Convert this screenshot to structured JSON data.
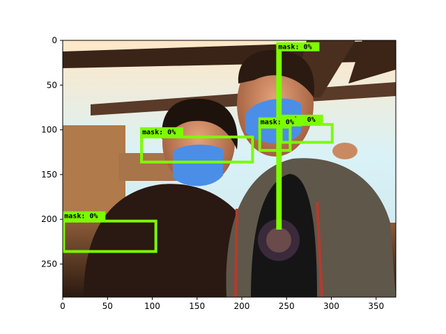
{
  "axes": {
    "x_range": [
      0,
      372
    ],
    "y_range": [
      0,
      287
    ],
    "y_inverted": true,
    "x_ticks": [
      0,
      50,
      100,
      150,
      200,
      250,
      300,
      350
    ],
    "y_ticks": [
      0,
      50,
      100,
      150,
      200,
      250
    ],
    "x_tick_labels": [
      "0",
      "50",
      "100",
      "150",
      "200",
      "250",
      "300",
      "350"
    ],
    "y_tick_labels": [
      "0",
      "50",
      "100",
      "150",
      "200",
      "250"
    ]
  },
  "detections": [
    {
      "label": "mask:  0%",
      "x0": 240,
      "y0": 13,
      "x1": 243,
      "y1": 210
    },
    {
      "label": "mask:  0%",
      "x0": 244,
      "y0": 94,
      "x1": 301,
      "y1": 114
    },
    {
      "label": "mask:  0%",
      "x0": 88,
      "y0": 108,
      "x1": 212,
      "y1": 136
    },
    {
      "label": "mask:  0%",
      "x0": 220,
      "y0": 97,
      "x1": 254,
      "y1": 123
    },
    {
      "label": "mask:  0%",
      "x0": 1,
      "y0": 202,
      "x1": 104,
      "y1": 236
    }
  ],
  "colors": {
    "box": "#7cfc00",
    "mask": "#4a8ee8",
    "frame": "#000000"
  }
}
